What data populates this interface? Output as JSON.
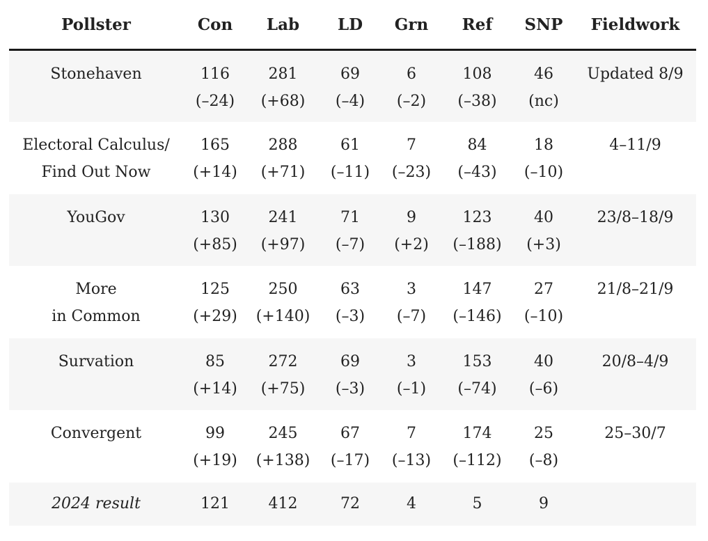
{
  "table": {
    "headers": [
      "Pollster",
      "Con",
      "Lab",
      "LD",
      "Grn",
      "Ref",
      "SNP",
      "Fieldwork"
    ],
    "rows": [
      {
        "pollster": [
          "Stonehaven"
        ],
        "seats": [
          [
            "116",
            "(–24)"
          ],
          [
            "281",
            "(+68)"
          ],
          [
            "69",
            "(–4)"
          ],
          [
            "6",
            "(–2)"
          ],
          [
            "108",
            "(–38)"
          ],
          [
            "46",
            "(nc)"
          ]
        ],
        "fieldwork": "Updated 8/9"
      },
      {
        "pollster": [
          "Electoral Calculus/",
          "Find Out Now"
        ],
        "seats": [
          [
            "165",
            "(+14)"
          ],
          [
            "288",
            "(+71)"
          ],
          [
            "61",
            "(–11)"
          ],
          [
            "7",
            "(–23)"
          ],
          [
            "84",
            "(–43)"
          ],
          [
            "18",
            "(–10)"
          ]
        ],
        "fieldwork": "4–11/9"
      },
      {
        "pollster": [
          "YouGov"
        ],
        "seats": [
          [
            "130",
            "(+85)"
          ],
          [
            "241",
            "(+97)"
          ],
          [
            "71",
            "(–7)"
          ],
          [
            "9",
            "(+2)"
          ],
          [
            "123",
            "(–188)"
          ],
          [
            "40",
            "(+3)"
          ]
        ],
        "fieldwork": "23/8–18/9"
      },
      {
        "pollster": [
          "More",
          "in Common"
        ],
        "seats": [
          [
            "125",
            "(+29)"
          ],
          [
            "250",
            "(+140)"
          ],
          [
            "63",
            "(–3)"
          ],
          [
            "3",
            "(–7)"
          ],
          [
            "147",
            "(–146)"
          ],
          [
            "27",
            "(–10)"
          ]
        ],
        "fieldwork": "21/8–21/9"
      },
      {
        "pollster": [
          "Survation"
        ],
        "seats": [
          [
            "85",
            "(+14)"
          ],
          [
            "272",
            "(+75)"
          ],
          [
            "69",
            "(–3)"
          ],
          [
            "3",
            "(–1)"
          ],
          [
            "153",
            "(–74)"
          ],
          [
            "40",
            "(–6)"
          ]
        ],
        "fieldwork": "20/8–4/9"
      },
      {
        "pollster": [
          "Convergent"
        ],
        "seats": [
          [
            "99",
            "(+19)"
          ],
          [
            "245",
            "(+138)"
          ],
          [
            "67",
            "(–17)"
          ],
          [
            "7",
            "(–13)"
          ],
          [
            "174",
            "(–112)"
          ],
          [
            "25",
            "(–8)"
          ]
        ],
        "fieldwork": "25–30/7"
      }
    ],
    "result": {
      "label": "2024 result",
      "seats": [
        "121",
        "412",
        "72",
        "4",
        "5",
        "9"
      ]
    }
  }
}
